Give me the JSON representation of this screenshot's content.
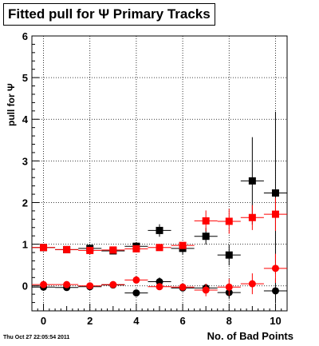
{
  "chart_data": {
    "type": "scatter",
    "title": "Fitted pull for Ψ  Primary Tracks",
    "xlabel": "No. of Bad Points",
    "ylabel": "pull for Ψ",
    "xlim": [
      -0.5,
      10.5
    ],
    "ylim": [
      -0.6,
      6
    ],
    "xticks": [
      0,
      2,
      4,
      6,
      8,
      10
    ],
    "yticks": [
      0,
      1,
      2,
      3,
      4,
      5,
      6
    ],
    "grid": true,
    "timestamp": "Thu Oct 27 22:05:54 2011",
    "series": [
      {
        "marker": "square",
        "color": "#000000",
        "x": [
          0,
          1,
          2,
          3,
          4,
          5,
          6,
          7,
          8,
          9,
          10
        ],
        "y": [
          0.92,
          0.87,
          0.9,
          0.84,
          0.95,
          1.33,
          0.9,
          1.19,
          0.74,
          2.52,
          2.23
        ],
        "err": [
          0.05,
          0.04,
          0.06,
          0.08,
          0.1,
          0.15,
          0.15,
          0.2,
          0.25,
          1.05,
          1.95
        ]
      },
      {
        "marker": "square",
        "color": "#ff0000",
        "x": [
          0,
          1,
          2,
          3,
          4,
          5,
          6,
          7,
          8,
          9,
          10
        ],
        "y": [
          0.92,
          0.87,
          0.85,
          0.86,
          0.89,
          0.92,
          0.97,
          1.56,
          1.55,
          1.64,
          1.72
        ],
        "err": [
          0.04,
          0.04,
          0.05,
          0.05,
          0.06,
          0.07,
          0.08,
          0.25,
          0.3,
          0.3,
          0.4
        ]
      },
      {
        "marker": "circle",
        "color": "#000000",
        "x": [
          0,
          1,
          2,
          3,
          4,
          5,
          6,
          7,
          8,
          9,
          10
        ],
        "y": [
          -0.03,
          -0.04,
          -0.02,
          0.02,
          -0.17,
          0.1,
          -0.05,
          -0.05,
          -0.16,
          null,
          -0.12
        ],
        "err": [
          0.03,
          0.03,
          0.04,
          0.05,
          0.08,
          0.1,
          0.06,
          0.1,
          0.15,
          0,
          0.3
        ]
      },
      {
        "marker": "circle",
        "color": "#ff0000",
        "x": [
          0,
          1,
          2,
          3,
          4,
          5,
          6,
          7,
          8,
          9,
          10
        ],
        "y": [
          0.03,
          0.03,
          0.0,
          0.03,
          0.14,
          -0.02,
          -0.03,
          -0.1,
          -0.03,
          0.05,
          0.42
        ],
        "err": [
          0.03,
          0.03,
          0.03,
          0.04,
          0.05,
          0.06,
          0.06,
          0.15,
          0.2,
          0.25,
          0.35
        ]
      }
    ]
  }
}
